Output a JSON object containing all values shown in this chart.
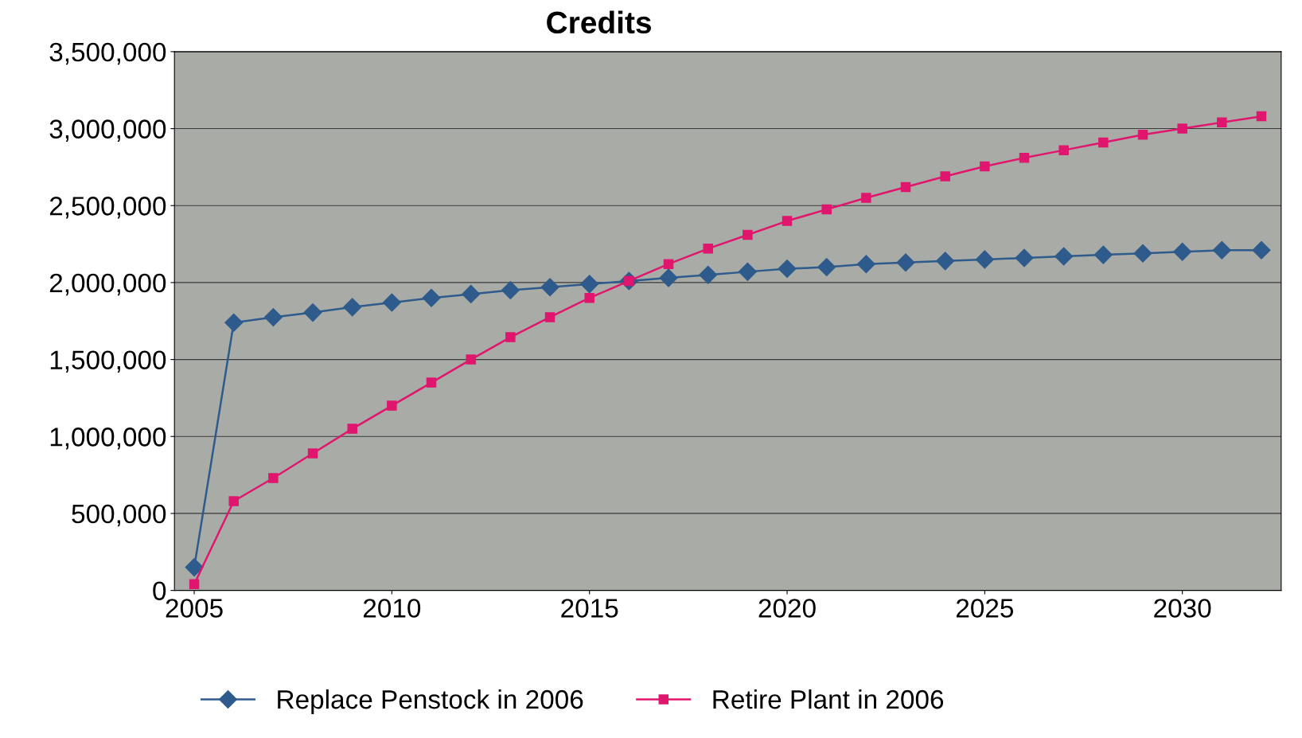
{
  "chart_data": {
    "type": "line",
    "title": "Credits",
    "x": [
      2005,
      2006,
      2007,
      2008,
      2009,
      2010,
      2011,
      2012,
      2013,
      2014,
      2015,
      2016,
      2017,
      2018,
      2019,
      2020,
      2021,
      2022,
      2023,
      2024,
      2025,
      2026,
      2027,
      2028,
      2029,
      2030,
      2031,
      2032
    ],
    "series": [
      {
        "name": "Replace Penstock in 2006",
        "color": "#2e5b8c",
        "marker": "diamond",
        "values": [
          150000,
          1740000,
          1775000,
          1805000,
          1840000,
          1870000,
          1900000,
          1925000,
          1950000,
          1970000,
          1990000,
          2010000,
          2030000,
          2050000,
          2070000,
          2090000,
          2100000,
          2120000,
          2130000,
          2140000,
          2150000,
          2160000,
          2170000,
          2180000,
          2190000,
          2200000,
          2210000,
          2210000
        ]
      },
      {
        "name": "Retire Plant in 2006",
        "color": "#e0166e",
        "marker": "square",
        "values": [
          40000,
          580000,
          730000,
          890000,
          1050000,
          1200000,
          1350000,
          1500000,
          1645000,
          1775000,
          1900000,
          2010000,
          2120000,
          2220000,
          2310000,
          2400000,
          2475000,
          2550000,
          2620000,
          2690000,
          2755000,
          2810000,
          2860000,
          2910000,
          2960000,
          3000000,
          3040000,
          3080000
        ]
      }
    ],
    "xlim": [
      2004.5,
      2032.5
    ],
    "xticks": [
      {
        "value": 2005,
        "label": "2005"
      },
      {
        "value": 2010,
        "label": "2010"
      },
      {
        "value": 2015,
        "label": "2015"
      },
      {
        "value": 2020,
        "label": "2020"
      },
      {
        "value": 2025,
        "label": "2025"
      },
      {
        "value": 2030,
        "label": "2030"
      }
    ],
    "ylim": [
      0,
      3500000
    ],
    "yticks": [
      {
        "value": 0,
        "label": "0"
      },
      {
        "value": 500000,
        "label": "500,000"
      },
      {
        "value": 1000000,
        "label": "1,000,000"
      },
      {
        "value": 1500000,
        "label": "1,500,000"
      },
      {
        "value": 2000000,
        "label": "2,000,000"
      },
      {
        "value": 2500000,
        "label": "2,500,000"
      },
      {
        "value": 3000000,
        "label": "3,000,000"
      },
      {
        "value": 3500000,
        "label": "3,500,000"
      }
    ],
    "grid": "y",
    "legend": "bottom",
    "line_style": "solid"
  }
}
